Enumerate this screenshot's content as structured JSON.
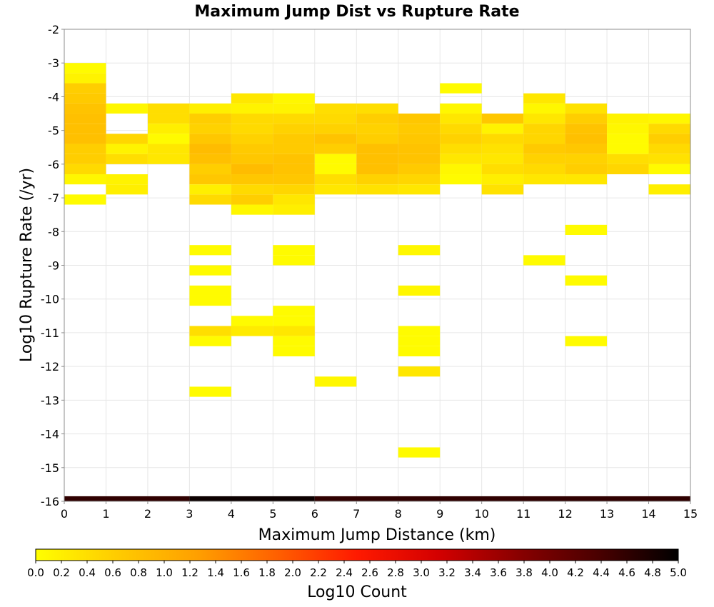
{
  "chart_data": {
    "type": "heatmap",
    "title": "Maximum Jump Dist vs Rupture Rate",
    "xlabel": "Maximum Jump Distance (km)",
    "ylabel": "Log10 Rupture Rate (/yr)",
    "xlim": [
      0,
      15
    ],
    "ylim": [
      -16,
      -2
    ],
    "x_ticks": [
      "0",
      "1",
      "2",
      "3",
      "4",
      "5",
      "6",
      "7",
      "8",
      "9",
      "10",
      "11",
      "12",
      "13",
      "14",
      "15"
    ],
    "y_ticks": [
      "-2",
      "-3",
      "-4",
      "-5",
      "-6",
      "-7",
      "-8",
      "-9",
      "-10",
      "-11",
      "-12",
      "-13",
      "-14",
      "-15",
      "-16"
    ],
    "colorbar": {
      "label": "Log10 Count",
      "range": [
        0,
        5
      ],
      "ticks": [
        "0.0",
        "0.2",
        "0.4",
        "0.6",
        "0.8",
        "1.0",
        "1.2",
        "1.4",
        "1.6",
        "1.8",
        "2.0",
        "2.2",
        "2.4",
        "2.6",
        "2.8",
        "3.0",
        "3.2",
        "3.4",
        "3.6",
        "3.8",
        "4.0",
        "4.2",
        "4.4",
        "4.6",
        "4.8",
        "5.0"
      ],
      "colormap": [
        "#ffff00",
        "#ffcc00",
        "#ffa000",
        "#ff6000",
        "#ff1a00",
        "#d40000",
        "#8a0000",
        "#4a0000",
        "#000000"
      ]
    },
    "grid": true,
    "cell_dx": 1,
    "cell_dy": 0.3,
    "cells": [
      [
        0,
        -3.0,
        0.05
      ],
      [
        0,
        -3.3,
        0.15
      ],
      [
        0,
        -3.6,
        0.6
      ],
      [
        0,
        -3.9,
        0.65
      ],
      [
        0,
        -4.2,
        0.75
      ],
      [
        0,
        -4.5,
        0.8
      ],
      [
        0,
        -4.8,
        0.8
      ],
      [
        0,
        -5.1,
        0.8
      ],
      [
        0,
        -5.4,
        0.6
      ],
      [
        0,
        -5.7,
        0.6
      ],
      [
        0,
        -6.0,
        0.45
      ],
      [
        0,
        -6.3,
        0.1
      ],
      [
        0,
        -6.9,
        0.05
      ],
      [
        1,
        -4.2,
        0.1
      ],
      [
        1,
        -5.1,
        0.5
      ],
      [
        1,
        -5.4,
        0.15
      ],
      [
        1,
        -5.7,
        0.4
      ],
      [
        1,
        -6.3,
        0.15
      ],
      [
        1,
        -6.6,
        0.2
      ],
      [
        2,
        -4.2,
        0.4
      ],
      [
        2,
        -4.5,
        0.4
      ],
      [
        2,
        -4.8,
        0.2
      ],
      [
        2,
        -5.1,
        0.05
      ],
      [
        2,
        -5.4,
        0.3
      ],
      [
        2,
        -5.7,
        0.3
      ],
      [
        3,
        -4.2,
        0.2
      ],
      [
        3,
        -4.5,
        0.6
      ],
      [
        3,
        -4.8,
        0.55
      ],
      [
        3,
        -5.1,
        0.7
      ],
      [
        3,
        -5.4,
        0.85
      ],
      [
        3,
        -5.7,
        0.8
      ],
      [
        3,
        -6.0,
        0.6
      ],
      [
        3,
        -6.3,
        0.7
      ],
      [
        3,
        -6.6,
        0.2
      ],
      [
        3,
        -6.9,
        0.45
      ],
      [
        3,
        -8.4,
        0.05
      ],
      [
        3,
        -9.0,
        0.05
      ],
      [
        3,
        -9.6,
        0.05
      ],
      [
        3,
        -9.9,
        0.05
      ],
      [
        3,
        -10.8,
        0.4
      ],
      [
        3,
        -11.1,
        0.05
      ],
      [
        3,
        -12.6,
        0.05
      ],
      [
        4,
        -3.9,
        0.3
      ],
      [
        4,
        -4.2,
        0.15
      ],
      [
        4,
        -4.5,
        0.45
      ],
      [
        4,
        -4.8,
        0.45
      ],
      [
        4,
        -5.1,
        0.55
      ],
      [
        4,
        -5.4,
        0.65
      ],
      [
        4,
        -5.7,
        0.7
      ],
      [
        4,
        -6.0,
        0.85
      ],
      [
        4,
        -6.3,
        0.7
      ],
      [
        4,
        -6.6,
        0.45
      ],
      [
        4,
        -6.9,
        0.6
      ],
      [
        4,
        -7.2,
        0.1
      ],
      [
        4,
        -10.5,
        0.05
      ],
      [
        4,
        -10.8,
        0.25
      ],
      [
        5,
        -3.9,
        0.1
      ],
      [
        5,
        -4.2,
        0.15
      ],
      [
        5,
        -4.5,
        0.45
      ],
      [
        5,
        -4.8,
        0.55
      ],
      [
        5,
        -5.1,
        0.65
      ],
      [
        5,
        -5.4,
        0.65
      ],
      [
        5,
        -5.7,
        0.75
      ],
      [
        5,
        -6.0,
        0.75
      ],
      [
        5,
        -6.3,
        0.7
      ],
      [
        5,
        -6.6,
        0.5
      ],
      [
        5,
        -6.9,
        0.3
      ],
      [
        5,
        -7.2,
        0.2
      ],
      [
        5,
        -8.4,
        0.05
      ],
      [
        5,
        -8.7,
        0.05
      ],
      [
        5,
        -10.2,
        0.05
      ],
      [
        5,
        -10.5,
        0.05
      ],
      [
        5,
        -10.8,
        0.3
      ],
      [
        5,
        -11.1,
        0.05
      ],
      [
        5,
        -11.4,
        0.05
      ],
      [
        6,
        -4.2,
        0.4
      ],
      [
        6,
        -4.5,
        0.45
      ],
      [
        6,
        -4.8,
        0.55
      ],
      [
        6,
        -5.1,
        0.75
      ],
      [
        6,
        -5.4,
        0.6
      ],
      [
        6,
        -5.7,
        0.05
      ],
      [
        6,
        -6.0,
        0.05
      ],
      [
        6,
        -6.3,
        0.4
      ],
      [
        6,
        -6.6,
        0.3
      ],
      [
        6,
        -12.3,
        0.1
      ],
      [
        7,
        -4.2,
        0.4
      ],
      [
        7,
        -4.5,
        0.6
      ],
      [
        7,
        -4.8,
        0.55
      ],
      [
        7,
        -5.1,
        0.6
      ],
      [
        7,
        -5.4,
        0.8
      ],
      [
        7,
        -5.7,
        0.8
      ],
      [
        7,
        -6.0,
        0.8
      ],
      [
        7,
        -6.3,
        0.55
      ],
      [
        7,
        -6.6,
        0.35
      ],
      [
        8,
        -4.5,
        0.7
      ],
      [
        8,
        -4.8,
        0.65
      ],
      [
        8,
        -5.1,
        0.7
      ],
      [
        8,
        -5.4,
        0.75
      ],
      [
        8,
        -5.7,
        0.75
      ],
      [
        8,
        -6.0,
        0.65
      ],
      [
        8,
        -6.3,
        0.5
      ],
      [
        8,
        -6.6,
        0.3
      ],
      [
        8,
        -8.4,
        0.1
      ],
      [
        8,
        -9.6,
        0.1
      ],
      [
        8,
        -10.8,
        0.05
      ],
      [
        8,
        -11.1,
        0.05
      ],
      [
        8,
        -11.4,
        0.05
      ],
      [
        8,
        -12.0,
        0.3
      ],
      [
        8,
        -14.4,
        0.05
      ],
      [
        9,
        -3.6,
        0.05
      ],
      [
        9,
        -4.2,
        0.1
      ],
      [
        9,
        -4.5,
        0.3
      ],
      [
        9,
        -4.8,
        0.45
      ],
      [
        9,
        -5.1,
        0.55
      ],
      [
        9,
        -5.4,
        0.4
      ],
      [
        9,
        -5.7,
        0.3
      ],
      [
        9,
        -6.0,
        0.1
      ],
      [
        9,
        -6.3,
        0.05
      ],
      [
        10,
        -4.5,
        0.7
      ],
      [
        10,
        -4.8,
        0.15
      ],
      [
        10,
        -5.1,
        0.45
      ],
      [
        10,
        -5.4,
        0.35
      ],
      [
        10,
        -5.7,
        0.3
      ],
      [
        10,
        -6.0,
        0.4
      ],
      [
        10,
        -6.3,
        0.2
      ],
      [
        10,
        -6.6,
        0.35
      ],
      [
        11,
        -3.9,
        0.3
      ],
      [
        11,
        -4.2,
        0.1
      ],
      [
        11,
        -4.5,
        0.3
      ],
      [
        11,
        -4.8,
        0.5
      ],
      [
        11,
        -5.1,
        0.5
      ],
      [
        11,
        -5.4,
        0.65
      ],
      [
        11,
        -5.7,
        0.55
      ],
      [
        11,
        -6.0,
        0.45
      ],
      [
        11,
        -6.3,
        0.3
      ],
      [
        11,
        -8.7,
        0.05
      ],
      [
        12,
        -4.2,
        0.35
      ],
      [
        12,
        -4.5,
        0.6
      ],
      [
        12,
        -4.8,
        0.75
      ],
      [
        12,
        -5.1,
        0.8
      ],
      [
        12,
        -5.4,
        0.7
      ],
      [
        12,
        -5.7,
        0.55
      ],
      [
        12,
        -6.0,
        0.6
      ],
      [
        12,
        -6.3,
        0.3
      ],
      [
        12,
        -7.8,
        0.05
      ],
      [
        12,
        -9.3,
        0.05
      ],
      [
        12,
        -11.1,
        0.05
      ],
      [
        13,
        -4.5,
        0.15
      ],
      [
        13,
        -4.8,
        0.1
      ],
      [
        13,
        -5.1,
        0.05
      ],
      [
        13,
        -5.4,
        0.05
      ],
      [
        13,
        -5.7,
        0.4
      ],
      [
        13,
        -6.0,
        0.5
      ],
      [
        14,
        -4.5,
        0.1
      ],
      [
        14,
        -4.8,
        0.45
      ],
      [
        14,
        -5.1,
        0.6
      ],
      [
        14,
        -5.4,
        0.45
      ],
      [
        14,
        -5.7,
        0.35
      ],
      [
        14,
        -6.0,
        0.05
      ],
      [
        14,
        -6.6,
        0.2
      ]
    ],
    "bottom_strip": [
      {
        "x": [
          0,
          3
        ],
        "value": 4.6
      },
      {
        "x": [
          3,
          6
        ],
        "value": 4.9
      },
      {
        "x": [
          6,
          15
        ],
        "value": 4.6
      }
    ]
  }
}
